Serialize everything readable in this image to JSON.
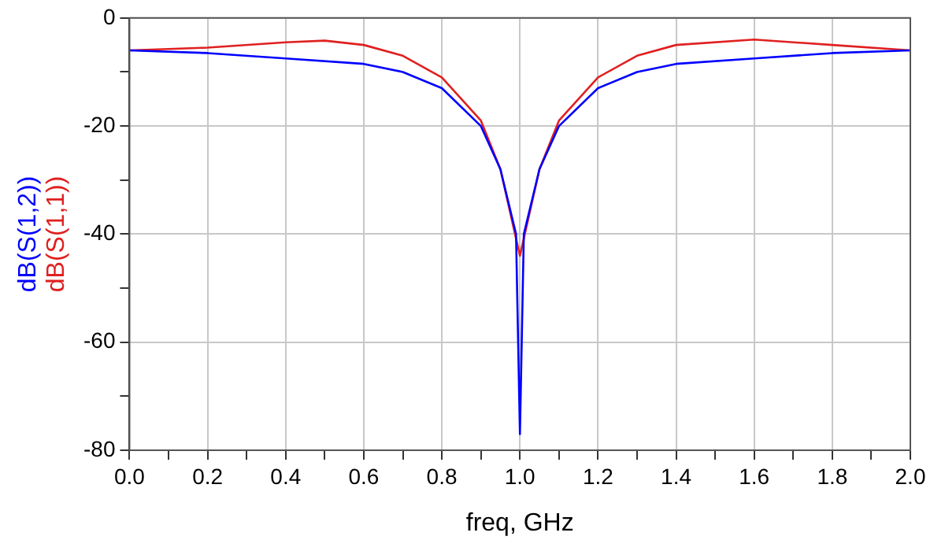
{
  "chart_data": {
    "type": "line",
    "xlabel": "freq, GHz",
    "legend": "left",
    "grid": true,
    "marker": "none",
    "line_style": "solid",
    "xlim": [
      0,
      2
    ],
    "ylim": [
      -80,
      0
    ],
    "xticks": [
      {
        "value": 0,
        "label": "0.0"
      },
      {
        "value": 0.1,
        "label": null
      },
      {
        "value": 0.2,
        "label": "0.2"
      },
      {
        "value": 0.3,
        "label": null
      },
      {
        "value": 0.4,
        "label": "0.4"
      },
      {
        "value": 0.5,
        "label": null
      },
      {
        "value": 0.6,
        "label": "0.6"
      },
      {
        "value": 0.7,
        "label": null
      },
      {
        "value": 0.8,
        "label": "0.8"
      },
      {
        "value": 0.9,
        "label": null
      },
      {
        "value": 1,
        "label": "1.0"
      },
      {
        "value": 1.1,
        "label": null
      },
      {
        "value": 1.2,
        "label": "1.2"
      },
      {
        "value": 1.3,
        "label": null
      },
      {
        "value": 1.4,
        "label": "1.4"
      },
      {
        "value": 1.5,
        "label": null
      },
      {
        "value": 1.6,
        "label": "1.6"
      },
      {
        "value": 1.7,
        "label": null
      },
      {
        "value": 1.8,
        "label": "1.8"
      },
      {
        "value": 1.9,
        "label": null
      },
      {
        "value": 2,
        "label": "2.0"
      }
    ],
    "yticks": [
      -80,
      {
        "value": -70,
        "label": null
      },
      -60,
      {
        "value": -50,
        "label": null
      },
      -40,
      {
        "value": -30,
        "label": null
      },
      -20,
      {
        "value": -10,
        "label": null
      },
      0
    ],
    "series": [
      {
        "name": "dB(S(1,2))",
        "color": "#0000ff",
        "x": [
          0,
          0.2,
          0.4,
          0.6,
          0.7,
          0.8,
          0.9,
          0.95,
          0.99,
          1.0,
          1.01,
          1.05,
          1.1,
          1.2,
          1.3,
          1.4,
          1.6,
          1.8,
          2.0
        ],
        "values": [
          -6,
          -6.5,
          -7.5,
          -8.5,
          -10,
          -13,
          -20,
          -28,
          -40,
          -77,
          -40,
          -28,
          -20,
          -13,
          -10,
          -8.5,
          -7.5,
          -6.5,
          -6
        ]
      },
      {
        "name": "dB(S(1,1))",
        "color": "#e02020",
        "x": [
          0,
          0.2,
          0.4,
          0.5,
          0.6,
          0.7,
          0.8,
          0.9,
          0.95,
          1.0,
          1.05,
          1.1,
          1.2,
          1.3,
          1.4,
          1.6,
          1.8,
          2.0
        ],
        "values": [
          -6,
          -5.5,
          -4.5,
          -4.2,
          -5,
          -7,
          -11,
          -19,
          -28,
          -44,
          -28,
          -19,
          -11,
          -7,
          -5,
          -4,
          -5,
          -6
        ]
      }
    ]
  }
}
